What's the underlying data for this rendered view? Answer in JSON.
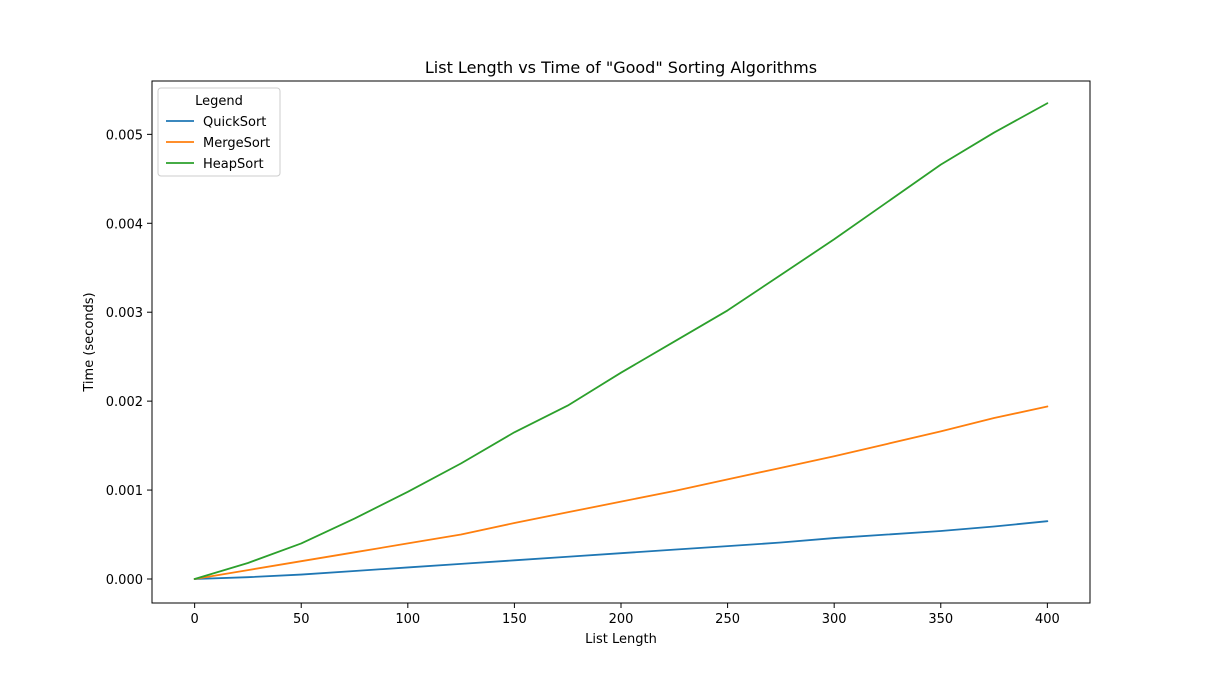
{
  "chart_data": {
    "type": "line",
    "title": "List Length vs Time of \"Good\" Sorting Algorithms",
    "xlabel": "List Length",
    "ylabel": "Time (seconds)",
    "xlim": [
      -20,
      420
    ],
    "ylim": [
      -0.00027,
      0.0056
    ],
    "xticks": [
      0,
      50,
      100,
      150,
      200,
      250,
      300,
      350,
      400
    ],
    "xtick_labels": [
      "0",
      "50",
      "100",
      "150",
      "200",
      "250",
      "300",
      "350",
      "400"
    ],
    "yticks": [
      0,
      0.001,
      0.002,
      0.003,
      0.004,
      0.005
    ],
    "ytick_labels": [
      "0.000",
      "0.001",
      "0.002",
      "0.003",
      "0.004",
      "0.005"
    ],
    "grid": false,
    "legend": {
      "title": "Legend",
      "placement": "top-left"
    },
    "x": [
      0,
      25,
      50,
      75,
      100,
      125,
      150,
      175,
      200,
      225,
      250,
      275,
      300,
      325,
      350,
      375,
      400
    ],
    "series": [
      {
        "name": "QuickSort",
        "color": "#1f77b4",
        "values": [
          0,
          2e-05,
          5e-05,
          9e-05,
          0.00013,
          0.00017,
          0.00021,
          0.00025,
          0.00029,
          0.00033,
          0.00037,
          0.00041,
          0.00046,
          0.0005,
          0.00054,
          0.00059,
          0.00065
        ]
      },
      {
        "name": "MergeSort",
        "color": "#ff7f0e",
        "values": [
          0,
          0.0001,
          0.0002,
          0.0003,
          0.0004,
          0.0005,
          0.00063,
          0.00075,
          0.00087,
          0.00099,
          0.00112,
          0.00125,
          0.00138,
          0.00152,
          0.00166,
          0.00181,
          0.00194
        ]
      },
      {
        "name": "HeapSort",
        "color": "#2ca02c",
        "values": [
          0,
          0.00018,
          0.0004,
          0.00068,
          0.00098,
          0.0013,
          0.00165,
          0.00195,
          0.00232,
          0.00267,
          0.00302,
          0.00342,
          0.00382,
          0.00424,
          0.00466,
          0.00502,
          0.00535
        ]
      }
    ]
  }
}
